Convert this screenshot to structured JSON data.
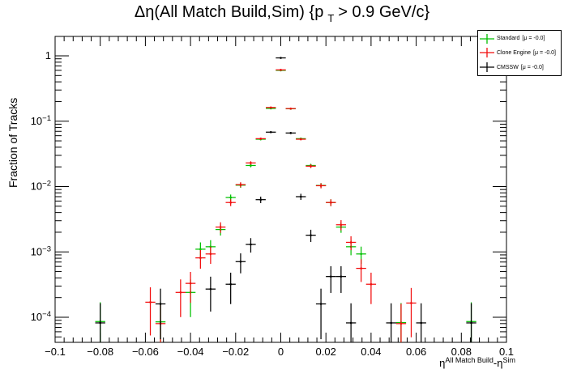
{
  "title": {
    "prefix": "Δη(All Match Build,Sim) {p",
    "sub": "T",
    "suffix": "> 0.9 GeV/c}"
  },
  "axes": {
    "ylabel": "Fraction of Tracks",
    "xlabel_parts": {
      "base1": "η",
      "sup1": "All Match Build",
      "mid": "-",
      "base2": "η",
      "sup2": "Sim"
    },
    "x_tick_labels": [
      "−0.1",
      "−0.08",
      "−0.06",
      "−0.04",
      "−0.02",
      "0",
      "0.02",
      "0.04",
      "0.06",
      "0.08",
      "0.1"
    ],
    "y_tick_labels": [
      {
        "v": 1,
        "base": "1",
        "exp": ""
      },
      {
        "v": 0.1,
        "base": "10",
        "exp": "−1"
      },
      {
        "v": 0.01,
        "base": "10",
        "exp": "−2"
      },
      {
        "v": 0.001,
        "base": "10",
        "exp": "−3"
      },
      {
        "v": 0.0001,
        "base": "10",
        "exp": "−4"
      }
    ]
  },
  "legend": {
    "entries": [
      {
        "name": "Standard",
        "mu": "[μ = -0.0]",
        "color": "#00c000"
      },
      {
        "name": "Clone Engine",
        "mu": "[μ = -0.0]",
        "color": "#f20d0d"
      },
      {
        "name": "CMSSW",
        "mu": "[μ = -0.0]",
        "color": "#000000"
      }
    ]
  },
  "chart_data": {
    "type": "scatter",
    "subtype": "errorbar-histogram-points",
    "title": "Δη(All Match Build,Sim) {p_T > 0.9 GeV/c}",
    "xlabel": "η^{All Match Build}-η^{Sim}",
    "ylabel": "Fraction of Tracks",
    "xlim": [
      -0.1,
      0.1
    ],
    "ylim": [
      4.1e-05,
      2.0
    ],
    "y_scale": "log",
    "grid": false,
    "legend_position": "top-right",
    "x_ticks": [
      -0.1,
      -0.08,
      -0.06,
      -0.04,
      -0.02,
      0,
      0.02,
      0.04,
      0.06,
      0.08,
      0.1
    ],
    "x_minor_step": 0.004,
    "bin_half_width": 0.00222,
    "poisson_n_for_errorbars": 12350,
    "series": [
      {
        "name": "Standard",
        "color": "#00c000",
        "points": [
          [
            -0.08,
            8.6e-05
          ],
          [
            -0.0533,
            8.5e-05
          ],
          [
            -0.04,
            0.00024
          ],
          [
            -0.0356,
            0.0011
          ],
          [
            -0.0311,
            0.0012
          ],
          [
            -0.0267,
            0.0022
          ],
          [
            -0.0222,
            0.0068
          ],
          [
            -0.0178,
            0.0105
          ],
          [
            -0.0133,
            0.021
          ],
          [
            -0.0089,
            0.053
          ],
          [
            -0.0044,
            0.157
          ],
          [
            0,
            0.6
          ],
          [
            0.0044,
            0.155
          ],
          [
            0.0089,
            0.054
          ],
          [
            0.0133,
            0.021
          ],
          [
            0.0178,
            0.0104
          ],
          [
            0.0222,
            0.0057
          ],
          [
            0.0267,
            0.0024
          ],
          [
            0.0311,
            0.0012
          ],
          [
            0.0356,
            0.00093
          ],
          [
            0.0533,
            8.3e-05
          ],
          [
            0.0844,
            8.6e-05
          ]
        ]
      },
      {
        "name": "Clone Engine",
        "color": "#f20d0d",
        "points": [
          [
            -0.0578,
            0.00017
          ],
          [
            -0.0533,
            8e-05
          ],
          [
            -0.0444,
            0.00024
          ],
          [
            -0.04,
            0.00033
          ],
          [
            -0.0356,
            0.00081
          ],
          [
            -0.0311,
            0.00093
          ],
          [
            -0.0267,
            0.0024
          ],
          [
            -0.0222,
            0.0057
          ],
          [
            -0.0178,
            0.0107
          ],
          [
            -0.0133,
            0.023
          ],
          [
            -0.0089,
            0.054
          ],
          [
            -0.0044,
            0.162
          ],
          [
            0,
            0.61
          ],
          [
            0.0044,
            0.156
          ],
          [
            0.0089,
            0.053
          ],
          [
            0.0133,
            0.0205
          ],
          [
            0.0178,
            0.0103
          ],
          [
            0.0222,
            0.0057
          ],
          [
            0.0267,
            0.0026
          ],
          [
            0.0311,
            0.0014
          ],
          [
            0.0356,
            0.00056
          ],
          [
            0.04,
            0.00032
          ],
          [
            0.0533,
            8e-05
          ],
          [
            0.0578,
            0.000165
          ]
        ]
      },
      {
        "name": "CMSSW",
        "color": "#000000",
        "points": [
          [
            -0.08,
            8.2e-05
          ],
          [
            -0.0533,
            0.00016
          ],
          [
            -0.0311,
            0.00027
          ],
          [
            -0.0222,
            0.00032
          ],
          [
            -0.0178,
            0.00071
          ],
          [
            -0.0133,
            0.0013
          ],
          [
            -0.0089,
            0.0063
          ],
          [
            -0.0044,
            0.068
          ],
          [
            0,
            0.93
          ],
          [
            0.0044,
            0.066
          ],
          [
            0.0089,
            0.007
          ],
          [
            0.0133,
            0.0018
          ],
          [
            0.0178,
            0.00016
          ],
          [
            0.0222,
            0.00042
          ],
          [
            0.0267,
            0.00042
          ],
          [
            0.0311,
            8.2e-05
          ],
          [
            0.0489,
            8.2e-05
          ],
          [
            0.0622,
            8.2e-05
          ],
          [
            0.0844,
            8.2e-05
          ]
        ]
      }
    ]
  }
}
